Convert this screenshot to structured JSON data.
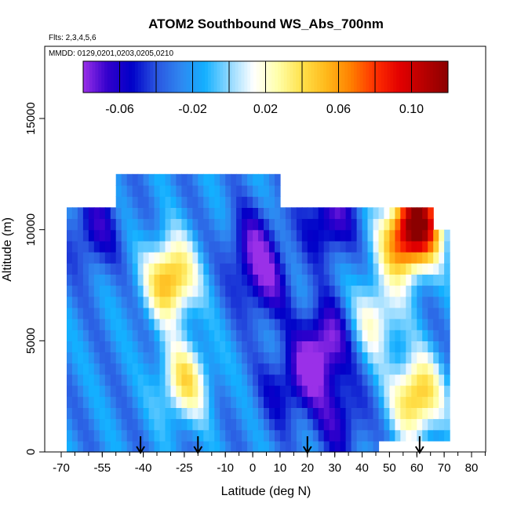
{
  "chart_data": {
    "type": "heatmap",
    "title": "ATOM2 Southbound WS_Abs_700nm",
    "flights_text": "Flts: 2,3,4,5,6",
    "mmdd_text": "MMDD: 0129,0201,0203,0205,0210",
    "xlabel": "Latitude (deg N)",
    "ylabel": "Altitude (m)",
    "xlim": [
      -70,
      85
    ],
    "ylim": [
      0,
      17500
    ],
    "x_ticks": [
      -70,
      -55,
      -40,
      -25,
      -10,
      0,
      10,
      20,
      30,
      40,
      50,
      60,
      70,
      80
    ],
    "y_ticks": [
      0,
      5000,
      10000,
      15000
    ],
    "colorbar": {
      "range": [
        -0.08,
        0.12
      ],
      "tick_values": [
        -0.06,
        -0.02,
        0.02,
        0.06,
        0.1
      ],
      "tick_labels": [
        "-0.06",
        "-0.02",
        "0.02",
        "0.06",
        "0.10"
      ],
      "colors": [
        "#9a30e8",
        "#3300cc",
        "#0000c8",
        "#2a55e0",
        "#2f86f0",
        "#13b0ff",
        "#8fd8ff",
        "#ffffff",
        "#ffffaa",
        "#ffe14a",
        "#ffb81a",
        "#ff8000",
        "#ff3000",
        "#e30000",
        "#b80000",
        "#8b0000"
      ]
    },
    "profile_markers_latitude": [
      -41,
      -20,
      20,
      61
    ],
    "curtain": {
      "lat_min": -68,
      "lat_max": 72,
      "lat_step": 2,
      "alt_max": 12500,
      "layer_thickness": 500,
      "base_value": -0.025,
      "features": [
        {
          "lat": -30,
          "alt": 7800,
          "value": 0.06
        },
        {
          "lat": -25,
          "alt": 3200,
          "value": 0.035
        },
        {
          "lat": 0,
          "alt": 9200,
          "value": -0.065
        },
        {
          "lat": 5,
          "alt": 7500,
          "value": -0.06
        },
        {
          "lat": 10,
          "alt": 2800,
          "value": -0.045
        },
        {
          "lat": 20,
          "alt": 3500,
          "value": -0.06
        },
        {
          "lat": 27,
          "alt": 5000,
          "value": -0.075
        },
        {
          "lat": 28,
          "alt": 10500,
          "value": -0.07
        },
        {
          "lat": 32,
          "alt": 1500,
          "value": -0.06
        },
        {
          "lat": 55,
          "alt": 9500,
          "value": 0.06
        },
        {
          "lat": 60,
          "alt": 2500,
          "value": 0.055
        },
        {
          "lat": 62,
          "alt": 10500,
          "value": 0.08
        },
        {
          "lat": 45,
          "alt": 6000,
          "value": 0.02
        },
        {
          "lat": -58,
          "alt": 10000,
          "value": -0.06
        }
      ]
    }
  }
}
